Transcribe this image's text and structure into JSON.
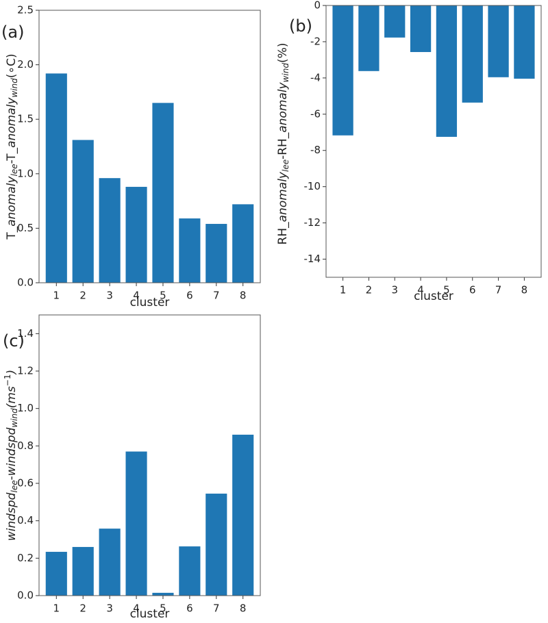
{
  "chart_data": [
    {
      "type": "bar",
      "panel_label": "(a)",
      "ylabel": [
        "T_",
        "anomaly",
        "lee",
        "-T_",
        "anomaly",
        "wind",
        "(∘C)"
      ],
      "xlabel": "cluster",
      "categories": [
        "1",
        "2",
        "3",
        "4",
        "5",
        "6",
        "7",
        "8"
      ],
      "values": [
        1.92,
        1.31,
        0.96,
        0.88,
        1.65,
        0.59,
        0.54,
        0.72
      ],
      "color": "#1f77b4",
      "ylim": [
        0,
        2.5
      ],
      "yticks": [
        {
          "value": 0,
          "label": "0.0"
        },
        0.5,
        {
          "value": 1,
          "label": "1.0"
        },
        1.5,
        {
          "value": 2,
          "label": "2.0"
        },
        2.5
      ]
    },
    {
      "type": "bar",
      "panel_label": "(b)",
      "ylabel": [
        "RH_",
        "anomaly",
        "lee",
        "-RH_",
        "anomaly",
        "wind",
        "(%)"
      ],
      "xlabel": "cluster",
      "categories": [
        "1",
        "2",
        "3",
        "4",
        "5",
        "6",
        "7",
        "8"
      ],
      "values": [
        -7.17,
        -3.62,
        -1.77,
        -2.57,
        -7.25,
        -5.36,
        -3.96,
        -4.04
      ],
      "color": "#1f77b4",
      "ylim": [
        -15,
        0
      ],
      "yticks": [
        -14,
        -12,
        -10,
        -8,
        -6,
        -4,
        -2,
        0
      ]
    },
    {
      "type": "bar",
      "panel_label": "(c)",
      "ylabel": [
        "windspd",
        "lee",
        "-",
        "windspd",
        "wind",
        "(ms",
        "−1",
        ")"
      ],
      "xlabel": "cluster",
      "categories": [
        "1",
        "2",
        "3",
        "4",
        "5",
        "6",
        "7",
        "8"
      ],
      "values": [
        0.234,
        0.26,
        0.358,
        0.77,
        0.015,
        0.263,
        0.545,
        0.86
      ],
      "color": "#1f77b4",
      "ylim": [
        0,
        1.5
      ],
      "yticks": [
        {
          "value": 0,
          "label": "0.0"
        },
        0.2,
        0.4,
        0.6,
        0.8,
        {
          "value": 1,
          "label": "1.0"
        },
        1.2,
        1.4
      ]
    }
  ]
}
